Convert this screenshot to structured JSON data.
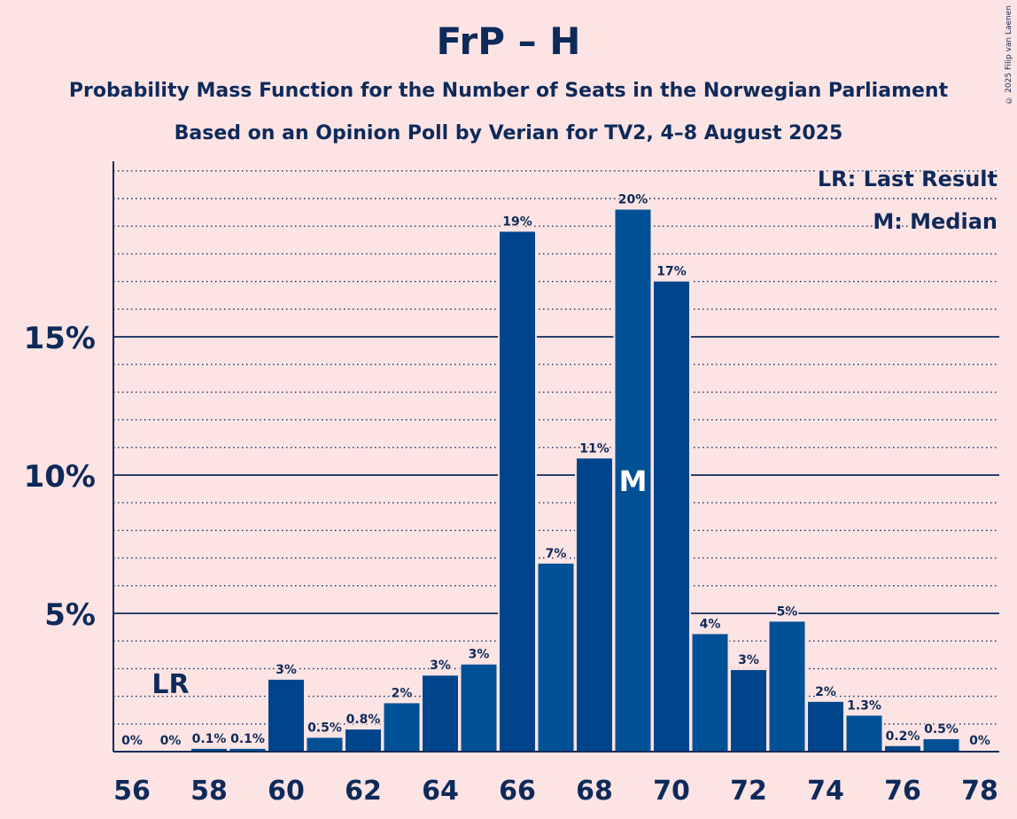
{
  "title": "FrP – H",
  "subtitle_1": "Probability Mass Function for the Number of Seats in the Norwegian Parliament",
  "subtitle_2": "Based on an Opinion Poll by Verian for TV2, 4–8 August 2025",
  "copyright": "© 2025 Filip van Laenen",
  "legend": {
    "last_result": "LR: Last Result",
    "median": "M: Median"
  },
  "colors": {
    "bar_a": "#00458b",
    "bar_b": "#005096",
    "text": "#0e2a5a",
    "background": "#fde4e4"
  },
  "chart_data": {
    "type": "bar",
    "x": [
      56,
      57,
      58,
      59,
      60,
      61,
      62,
      63,
      64,
      65,
      66,
      67,
      68,
      69,
      70,
      71,
      72,
      73,
      74,
      75,
      76,
      77,
      78
    ],
    "values": [
      0,
      0,
      0.1,
      0.1,
      2.6,
      0.5,
      0.8,
      1.75,
      2.75,
      3.15,
      18.8,
      6.8,
      10.6,
      19.6,
      17.0,
      4.25,
      2.95,
      4.7,
      1.8,
      1.3,
      0.2,
      0.45,
      0
    ],
    "labels": [
      "0%",
      "0%",
      "0.1%",
      "0.1%",
      "3%",
      "0.5%",
      "0.8%",
      "2%",
      "3%",
      "3%",
      "19%",
      "7%",
      "11%",
      "20%",
      "17%",
      "4%",
      "3%",
      "5%",
      "2%",
      "1.3%",
      "0.2%",
      "0.5%",
      "0%"
    ],
    "x_tick_labels": [
      "56",
      "58",
      "60",
      "62",
      "64",
      "66",
      "68",
      "70",
      "72",
      "74",
      "76",
      "78"
    ],
    "y_tick_labels": [
      "5%",
      "10%",
      "15%"
    ],
    "y_major_ticks": [
      5,
      10,
      15
    ],
    "y_minor_step": 1,
    "ylim": [
      0,
      21.4
    ],
    "last_result_seat": 57,
    "last_result_label": "LR",
    "median_seat": 69,
    "median_label": "M"
  }
}
